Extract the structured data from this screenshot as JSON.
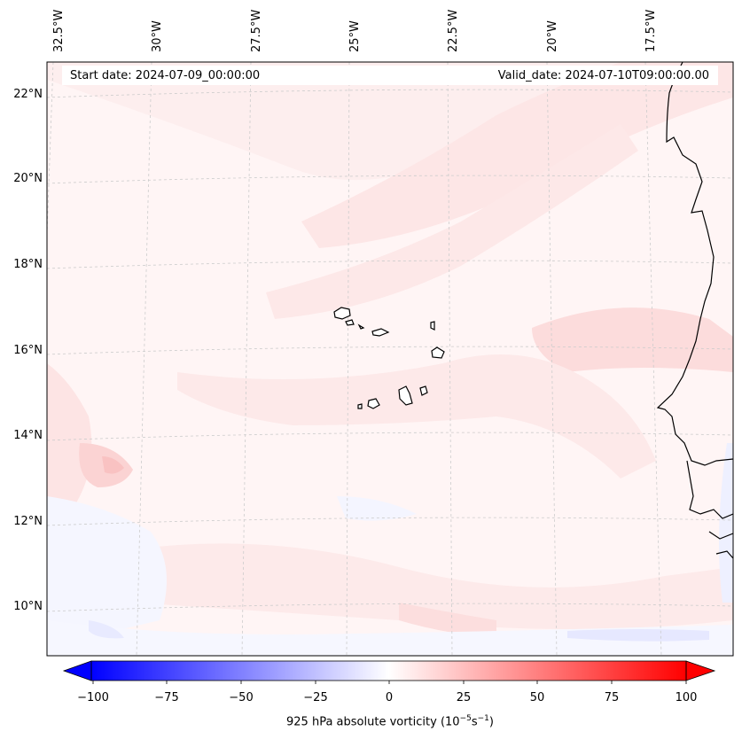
{
  "header": {
    "start_date": "Start date: 2024-07-09_00:00:00",
    "valid_date": "Valid_date: 2024-07-10T09:00:00.00"
  },
  "longitude_labels": [
    "32.5°W",
    "30°W",
    "27.5°W",
    "25°W",
    "22.5°W",
    "20°W",
    "17.5°W"
  ],
  "latitude_labels": [
    "22°N",
    "20°N",
    "18°N",
    "16°N",
    "14°N",
    "12°N",
    "10°N"
  ],
  "colorbar": {
    "ticks": [
      "−100",
      "−75",
      "−50",
      "−25",
      "0",
      "25",
      "50",
      "75",
      "100"
    ],
    "title": "925 hPa absolute vorticity (10",
    "title_sup1": "−5",
    "title_mid": "s",
    "title_sup2": "−1",
    "title_end": ")",
    "range": [
      -100,
      100
    ],
    "extend": "both",
    "colormap": "bwr",
    "low_color": "#0000ff",
    "mid_color": "#ffffff",
    "high_color": "#ff0000"
  },
  "map": {
    "projection": "Lambert conformal",
    "coastline_color": "#000000",
    "gridlines": "dashed light grey",
    "region": "Cape Verde Islands and West African coast"
  }
}
